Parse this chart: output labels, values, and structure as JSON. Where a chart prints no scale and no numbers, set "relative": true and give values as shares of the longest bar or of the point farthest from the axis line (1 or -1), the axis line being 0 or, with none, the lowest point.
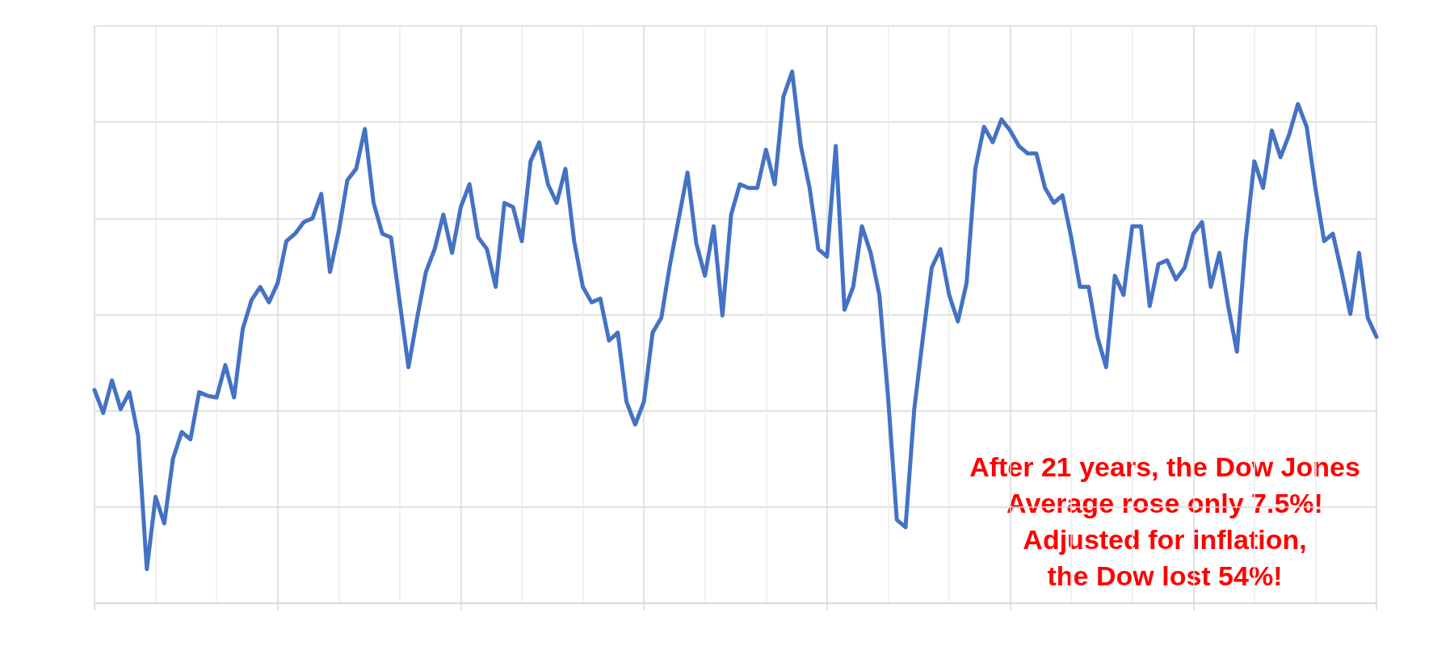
{
  "chart_data": {
    "type": "line",
    "relative": true,
    "grid": true,
    "color": "#4472c4",
    "categories": [
      null,
      null,
      null,
      null,
      null,
      null,
      null,
      null,
      null,
      null,
      null,
      null,
      null,
      null,
      null,
      null,
      null,
      null,
      null,
      null,
      null,
      null,
      null,
      null,
      null,
      null,
      null,
      null,
      null,
      null,
      null,
      null,
      null,
      null,
      null,
      null,
      null,
      null,
      null,
      null,
      null,
      null,
      null,
      null,
      null,
      null,
      null,
      null,
      null,
      null,
      null,
      null,
      null,
      null,
      null,
      null,
      null,
      null,
      null,
      null,
      null,
      null,
      null,
      null,
      null,
      null,
      null,
      null,
      null,
      null,
      null,
      null,
      null,
      null,
      null,
      null,
      null,
      null,
      null,
      null,
      null,
      null,
      null,
      null,
      null,
      null,
      null,
      null,
      null,
      null,
      null,
      null,
      null,
      null,
      null,
      null,
      null,
      null,
      null,
      null,
      null,
      null,
      null,
      null,
      null,
      null,
      null,
      null,
      null,
      null,
      null,
      null,
      null,
      null,
      null,
      null,
      null,
      null,
      null,
      null,
      null,
      null,
      null,
      null,
      null,
      null,
      null,
      null,
      null,
      null,
      null,
      null,
      null,
      null,
      null,
      null,
      null,
      null,
      null,
      null,
      null,
      null,
      null,
      null,
      null,
      null,
      null,
      null
    ],
    "values": [
      0.401,
      0.358,
      0.419,
      0.365,
      0.397,
      0.315,
      0.064,
      0.2,
      0.15,
      0.272,
      0.322,
      0.308,
      0.397,
      0.39,
      0.387,
      0.448,
      0.387,
      0.516,
      0.57,
      0.595,
      0.566,
      0.602,
      0.681,
      0.695,
      0.717,
      0.724,
      0.77,
      0.623,
      0.699,
      0.796,
      0.817,
      0.892,
      0.753,
      0.695,
      0.688,
      0.566,
      0.444,
      0.537,
      0.623,
      0.666,
      0.731,
      0.659,
      0.745,
      0.788,
      0.688,
      0.666,
      0.595,
      0.753,
      0.745,
      0.681,
      0.831,
      0.867,
      0.788,
      0.753,
      0.817,
      0.681,
      0.595,
      0.566,
      0.573,
      0.494,
      0.509,
      0.379,
      0.336,
      0.379,
      0.509,
      0.537,
      0.638,
      0.724,
      0.81,
      0.677,
      0.616,
      0.709,
      0.541,
      0.731,
      0.788,
      0.781,
      0.781,
      0.853,
      0.788,
      0.953,
      1.0,
      0.86,
      0.781,
      0.666,
      0.652,
      0.86,
      0.552,
      0.595,
      0.709,
      0.659,
      0.58,
      0.387,
      0.157,
      0.143,
      0.365,
      0.501,
      0.631,
      0.666,
      0.58,
      0.53,
      0.602,
      0.817,
      0.896,
      0.867,
      0.91,
      0.889,
      0.86,
      0.846,
      0.846,
      0.781,
      0.753,
      0.767,
      0.688,
      0.595,
      0.595,
      0.501,
      0.444,
      0.616,
      0.58,
      0.709,
      0.709,
      0.559,
      0.638,
      0.645,
      0.609,
      0.631,
      0.695,
      0.717,
      0.595,
      0.659,
      0.559,
      0.473,
      0.681,
      0.831,
      0.781,
      0.889,
      0.839,
      0.882,
      0.939,
      0.896,
      0.781,
      0.681,
      0.695,
      0.623,
      0.544,
      0.659,
      0.537,
      0.501
    ],
    "annotations": [
      "After 21 years, the Dow Jones\nAverage rose only 7.5%!\nAdjusted for inflation,\nthe Dow lost 54%!"
    ]
  }
}
